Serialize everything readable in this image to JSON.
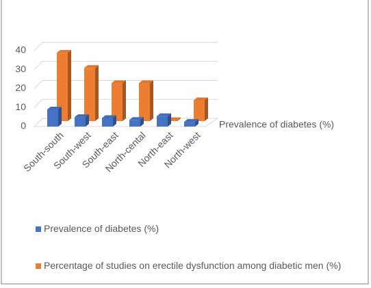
{
  "chart_data": {
    "type": "bar3d",
    "categories": [
      "South-south",
      "South-west",
      "South-east",
      "North-cental",
      "North-east",
      "North-west"
    ],
    "depth_axis_label": "Prevalence of diabetes (%)",
    "series": [
      {
        "name": "Prevalence of diabetes (%)",
        "color": "#4472c4",
        "values": [
          9,
          5,
          4.5,
          3.5,
          5.5,
          2.5
        ]
      },
      {
        "name": "Percentage of studies on erectile dysfunction among diabetic men (%)",
        "color": "#ed7d31",
        "values": [
          36,
          28,
          20,
          20,
          0.5,
          11
        ]
      }
    ],
    "ylim": [
      0,
      40
    ],
    "yticks": [
      0,
      10,
      20,
      30,
      40
    ],
    "grid": true
  }
}
